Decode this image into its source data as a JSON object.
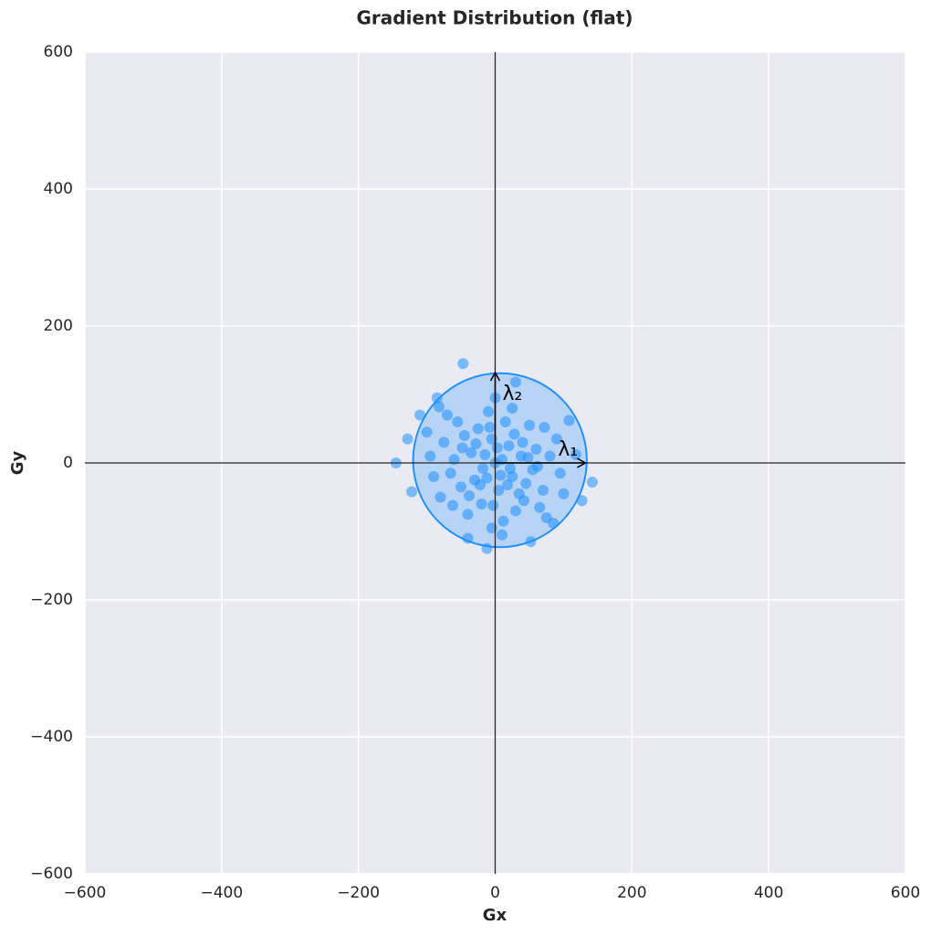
{
  "chart_data": {
    "type": "scatter",
    "title": "Gradient Distribution (flat)",
    "xlabel": "Gx",
    "ylabel": "Gy",
    "color": "#1e90ff",
    "x": [
      -47,
      142,
      -145,
      -12,
      118,
      -122,
      52,
      -128,
      108,
      -85,
      30,
      -40,
      127,
      -110,
      85,
      0,
      10,
      -15,
      25,
      -30,
      40,
      -45,
      55,
      -60,
      15,
      -20,
      35,
      -5,
      20,
      -35,
      45,
      -50,
      5,
      60,
      -25,
      30,
      -65,
      70,
      -10,
      50,
      -55,
      12,
      -75,
      80,
      -40,
      25,
      -80,
      65,
      -70,
      90,
      -90,
      0,
      -5,
      95,
      -95,
      38,
      -18,
      8,
      -28,
      18,
      42,
      -38,
      28,
      -48,
      62,
      -8,
      3,
      -22,
      48,
      -12,
      22,
      -3,
      72,
      -62,
      10,
      -100,
      100,
      75,
      -82
    ],
    "y": [
      145,
      -28,
      0,
      -125,
      12,
      -42,
      -115,
      35,
      62,
      95,
      118,
      -110,
      -55,
      70,
      -88,
      0,
      5,
      12,
      -20,
      -25,
      30,
      40,
      -10,
      5,
      60,
      -60,
      -45,
      35,
      25,
      15,
      -30,
      -35,
      -40,
      20,
      50,
      -70,
      -15,
      -40,
      75,
      55,
      60,
      -85,
      30,
      10,
      -75,
      80,
      -50,
      -65,
      70,
      35,
      -20,
      95,
      -95,
      -15,
      10,
      10,
      -8,
      -18,
      28,
      -32,
      -55,
      -48,
      42,
      22,
      -5,
      52,
      22,
      -32,
      8,
      -22,
      -8,
      -62,
      52,
      -62,
      -105,
      45,
      -45,
      -80,
      82
    ],
    "ellipse": {
      "center": [
        7,
        4
      ],
      "width": 254,
      "height": 254,
      "color": "#1e90ff"
    },
    "axhline": 0,
    "axvline": 0,
    "annotations": [
      {
        "text": "λ₁",
        "x": 132,
        "y": 0
      },
      {
        "text": "λ₂",
        "x": 0,
        "y": 132
      }
    ],
    "xlim": [
      -600,
      600
    ],
    "ylim": [
      -600,
      600
    ],
    "xticks": [
      {
        "value": -600,
        "label": "−600"
      },
      {
        "value": -400,
        "label": "−400"
      },
      {
        "value": -200,
        "label": "−200"
      },
      0,
      200,
      400,
      600
    ],
    "yticks": [
      {
        "value": -600,
        "label": "−600"
      },
      {
        "value": -400,
        "label": "−400"
      },
      {
        "value": -200,
        "label": "−200"
      },
      0,
      200,
      400,
      600
    ],
    "grid": true
  }
}
